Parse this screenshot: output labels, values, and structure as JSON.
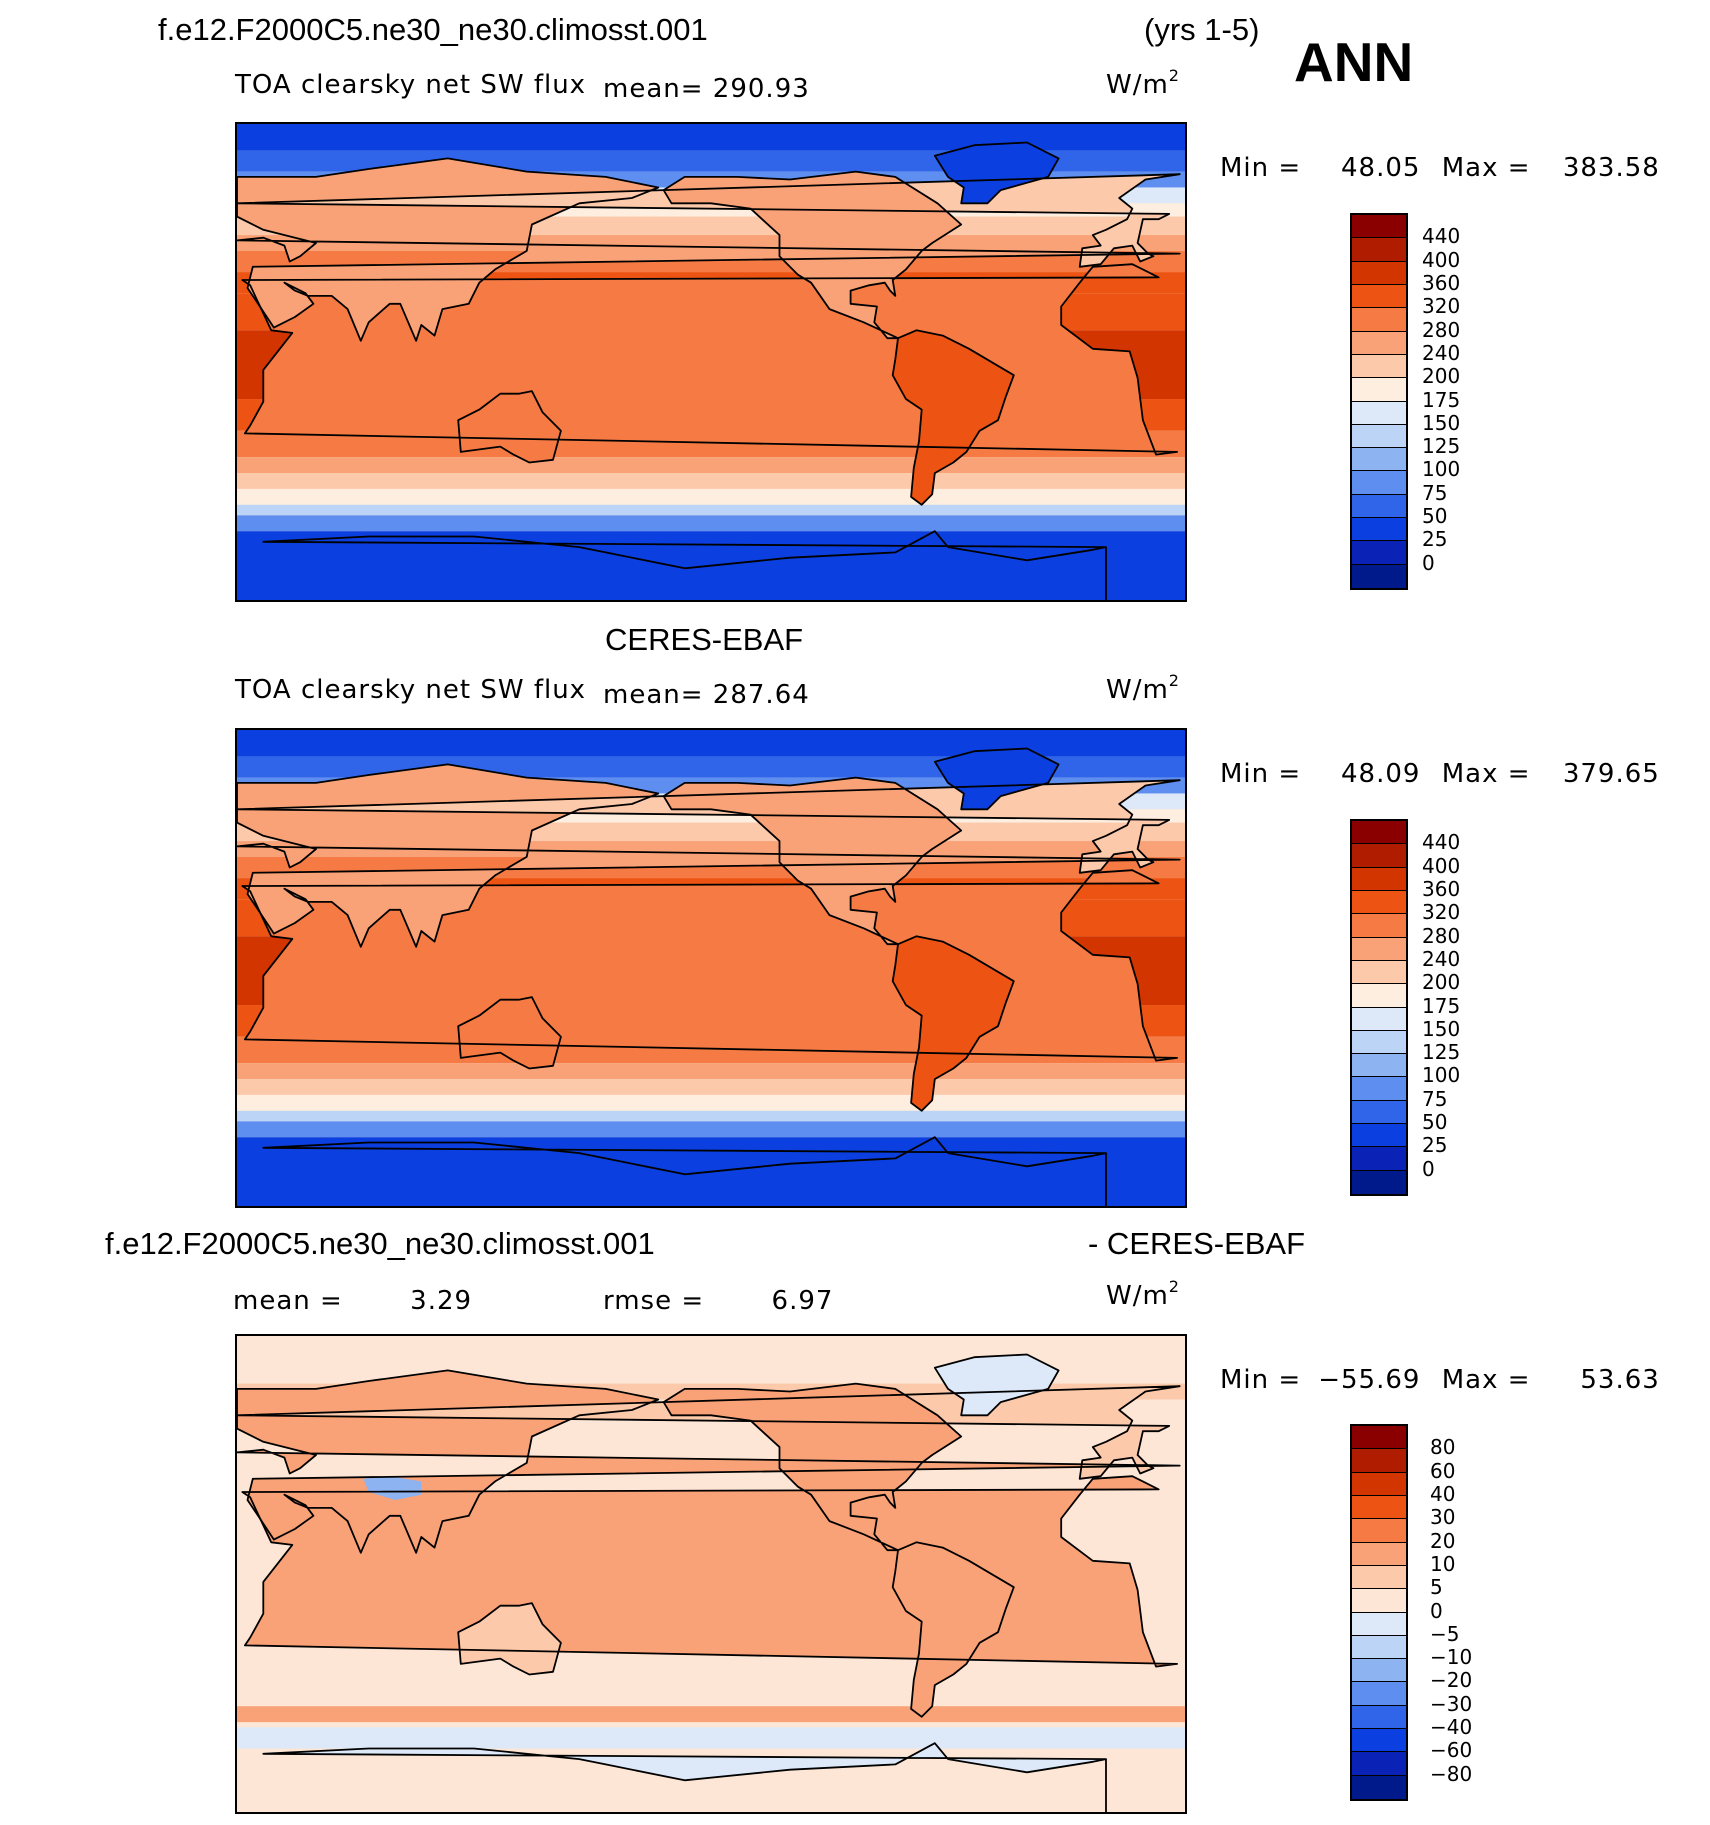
{
  "header": {
    "case_name": "f.e12.F2000C5.ne30_ne30.climosst.001",
    "years": "(yrs 1-5)",
    "season": "ANN"
  },
  "panels": [
    {
      "id": "model",
      "variable": "TOA clearsky net SW flux",
      "mean_label": "mean=",
      "mean_value": "290.93",
      "units_base": "W/m",
      "units_exp": "2",
      "min_label": "Min =",
      "min_value": "48.05",
      "max_label": "Max =",
      "max_value": "383.58",
      "palette": "absolute"
    },
    {
      "id": "obs",
      "title": "CERES-EBAF",
      "variable": "TOA clearsky net SW flux",
      "mean_label": "mean=",
      "mean_value": "287.64",
      "units_base": "W/m",
      "units_exp": "2",
      "min_label": "Min =",
      "min_value": "48.09",
      "max_label": "Max =",
      "max_value": "379.65",
      "palette": "absolute"
    },
    {
      "id": "diff",
      "title_left": "f.e12.F2000C5.ne30_ne30.climosst.001",
      "title_right": "- CERES-EBAF",
      "mean_label": "mean =",
      "mean_value": "3.29",
      "rmse_label": "rmse =",
      "rmse_value": "6.97",
      "units_base": "W/m",
      "units_exp": "2",
      "min_label": "Min =",
      "min_value": "−55.69",
      "max_label": "Max =",
      "max_value": "53.63",
      "palette": "difference"
    }
  ],
  "colorbars": {
    "absolute": {
      "levels": [
        "440",
        "400",
        "360",
        "320",
        "280",
        "240",
        "200",
        "175",
        "150",
        "125",
        "100",
        "75",
        "50",
        "25",
        "0"
      ],
      "colors": [
        "#8a0000",
        "#b01c00",
        "#d33500",
        "#ed5413",
        "#f57a43",
        "#f9a277",
        "#fcc9aa",
        "#fdeedf",
        "#dde9f8",
        "#bcd4f5",
        "#8db3f1",
        "#5d8ef0",
        "#3065e9",
        "#0b3fe0",
        "#0a22b5",
        "#001a8c"
      ]
    },
    "difference": {
      "levels": [
        "80",
        "60",
        "40",
        "30",
        "20",
        "10",
        "5",
        "0",
        "−5",
        "−10",
        "−20",
        "−30",
        "−40",
        "−60",
        "−80"
      ],
      "colors": [
        "#8a0000",
        "#b01c00",
        "#d33500",
        "#ed5413",
        "#f57a43",
        "#f9a277",
        "#fcc9aa",
        "#fde6d6",
        "#dde9f8",
        "#bcd4f5",
        "#8db3f1",
        "#5d8ef0",
        "#3065e9",
        "#0b3fe0",
        "#0a22b5",
        "#001a8c"
      ]
    }
  },
  "chart_data": [
    {
      "type": "heatmap",
      "title": "TOA clearsky net SW flux",
      "units": "W/m2",
      "mean": 290.93,
      "min": 48.05,
      "max": 383.58,
      "projection": "cylindrical equidistant, centered on Pacific",
      "color_levels": [
        0,
        25,
        50,
        75,
        100,
        125,
        150,
        175,
        200,
        240,
        280,
        320,
        360,
        400,
        440
      ]
    },
    {
      "type": "heatmap",
      "title": "CERES-EBAF",
      "units": "W/m2",
      "mean": 287.64,
      "min": 48.09,
      "max": 379.65,
      "projection": "cylindrical equidistant, centered on Pacific",
      "color_levels": [
        0,
        25,
        50,
        75,
        100,
        125,
        150,
        175,
        200,
        240,
        280,
        320,
        360,
        400,
        440
      ]
    },
    {
      "type": "heatmap",
      "title": "f.e12.F2000C5.ne30_ne30.climosst.001 - CERES-EBAF",
      "units": "W/m2",
      "mean": 3.29,
      "rmse": 6.97,
      "min": -55.69,
      "max": 53.63,
      "projection": "cylindrical equidistant, centered on Pacific",
      "color_levels": [
        -80,
        -60,
        -40,
        -30,
        -20,
        -10,
        -5,
        0,
        5,
        10,
        20,
        30,
        40,
        60,
        80
      ]
    }
  ]
}
